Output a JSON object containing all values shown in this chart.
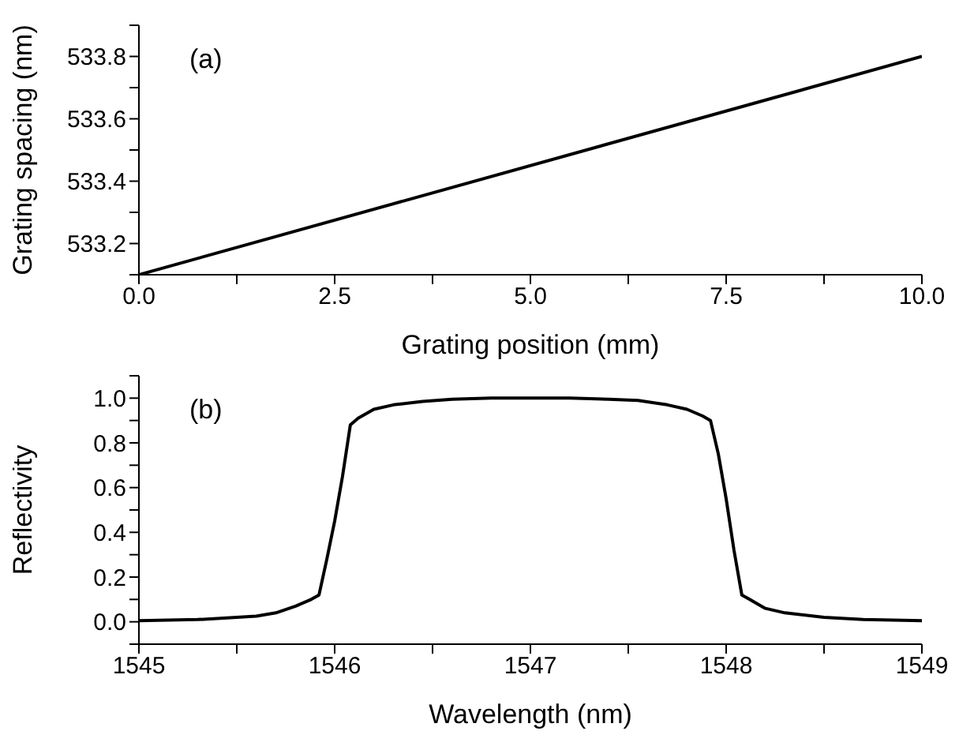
{
  "chart_data": [
    {
      "type": "line",
      "xlabel": "Grating position (mm)",
      "ylabel": "Grating spacing (nm)",
      "annotations": [
        "(a)"
      ],
      "x": [
        0,
        10
      ],
      "series": [
        {
          "color": "#000000",
          "values": [
            533.1,
            533.8
          ]
        }
      ],
      "xlim": [
        0,
        10
      ],
      "xticks": [
        {
          "value": 0,
          "label": "0.0"
        },
        {
          "value": 1.25,
          "label": null
        },
        {
          "value": 2.5,
          "label": "2.5"
        },
        {
          "value": 3.75,
          "label": null
        },
        {
          "value": 5,
          "label": "5.0"
        },
        {
          "value": 6.25,
          "label": null
        },
        {
          "value": 7.5,
          "label": "7.5"
        },
        {
          "value": 8.75,
          "label": null
        },
        {
          "value": 10,
          "label": "10.0"
        }
      ],
      "ylim": [
        533.1,
        533.9
      ],
      "yticks": [
        {
          "value": 533.1,
          "label": null
        },
        {
          "value": 533.2,
          "label": "533.2"
        },
        {
          "value": 533.3,
          "label": null
        },
        {
          "value": 533.4,
          "label": "533.4"
        },
        {
          "value": 533.5,
          "label": null
        },
        {
          "value": 533.6,
          "label": "533.6"
        },
        {
          "value": 533.7,
          "label": null
        },
        {
          "value": 533.8,
          "label": "533.8"
        },
        {
          "value": 533.9,
          "label": null
        }
      ],
      "grid": false,
      "legend": false,
      "marker": "none",
      "line_style": "solid"
    },
    {
      "type": "line",
      "xlabel": "Wavelength (nm)",
      "ylabel": "Reflectivity",
      "annotations": [
        "(b)"
      ],
      "x": [
        1545,
        1545.3,
        1545.5,
        1545.6,
        1545.7,
        1545.8,
        1545.88,
        1545.92,
        1545.96,
        1546.0,
        1546.04,
        1546.08,
        1546.12,
        1546.2,
        1546.3,
        1546.45,
        1546.6,
        1546.8,
        1547,
        1547.2,
        1547.4,
        1547.55,
        1547.7,
        1547.8,
        1547.88,
        1547.92,
        1547.96,
        1548.0,
        1548.04,
        1548.08,
        1548.12,
        1548.2,
        1548.3,
        1548.5,
        1548.7,
        1549
      ],
      "series": [
        {
          "color": "#000000",
          "values": [
            0.005,
            0.01,
            0.02,
            0.025,
            0.04,
            0.07,
            0.1,
            0.12,
            0.28,
            0.45,
            0.65,
            0.88,
            0.91,
            0.95,
            0.97,
            0.985,
            0.995,
            1.0,
            1.0,
            1.0,
            0.995,
            0.99,
            0.97,
            0.95,
            0.92,
            0.9,
            0.75,
            0.55,
            0.32,
            0.12,
            0.1,
            0.06,
            0.04,
            0.02,
            0.01,
            0.005
          ]
        }
      ],
      "xlim": [
        1545,
        1549
      ],
      "xticks": [
        1545,
        {
          "value": 1545.5,
          "label": null
        },
        1546,
        {
          "value": 1546.5,
          "label": null
        },
        1547,
        {
          "value": 1547.5,
          "label": null
        },
        1548,
        {
          "value": 1548.5,
          "label": null
        },
        1549
      ],
      "ylim": [
        -0.1,
        1.1
      ],
      "yticks": [
        {
          "value": -0.1,
          "label": null
        },
        {
          "value": 0,
          "label": "0.0"
        },
        {
          "value": 0.1,
          "label": null
        },
        {
          "value": 0.2,
          "label": "0.2"
        },
        {
          "value": 0.3,
          "label": null
        },
        {
          "value": 0.4,
          "label": "0.4"
        },
        {
          "value": 0.5,
          "label": null
        },
        {
          "value": 0.6,
          "label": "0.6"
        },
        {
          "value": 0.7,
          "label": null
        },
        {
          "value": 0.8,
          "label": "0.8"
        },
        {
          "value": 0.9,
          "label": null
        },
        {
          "value": 1.0,
          "label": "1.0"
        },
        {
          "value": 1.1,
          "label": null
        }
      ],
      "grid": false,
      "legend": false,
      "marker": "none",
      "line_style": "solid"
    }
  ]
}
